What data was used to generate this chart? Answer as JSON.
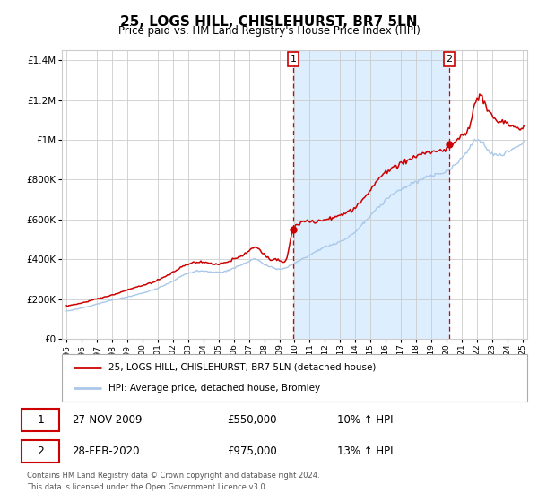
{
  "title": "25, LOGS HILL, CHISLEHURST, BR7 5LN",
  "subtitle": "Price paid vs. HM Land Registry's House Price Index (HPI)",
  "legend_line1": "25, LOGS HILL, CHISLEHURST, BR7 5LN (detached house)",
  "legend_line2": "HPI: Average price, detached house, Bromley",
  "transaction1_date": "27-NOV-2009",
  "transaction1_price": 550000,
  "transaction1_label": "10% ↑ HPI",
  "transaction2_date": "28-FEB-2020",
  "transaction2_price": 975000,
  "transaction2_label": "13% ↑ HPI",
  "footnote1": "Contains HM Land Registry data © Crown copyright and database right 2024.",
  "footnote2": "This data is licensed under the Open Government Licence v3.0.",
  "ylim": [
    0,
    1450000
  ],
  "x_start_year": 1995,
  "x_end_year": 2025,
  "hpi_color": "#aac8e8",
  "price_color": "#cc0000",
  "transaction1_x": 2009.92,
  "transaction2_x": 2020.17,
  "shade_color": "#ddeeff",
  "background_color": "#ffffff",
  "grid_color": "#cccccc",
  "title_fontsize": 11,
  "subtitle_fontsize": 8.5
}
